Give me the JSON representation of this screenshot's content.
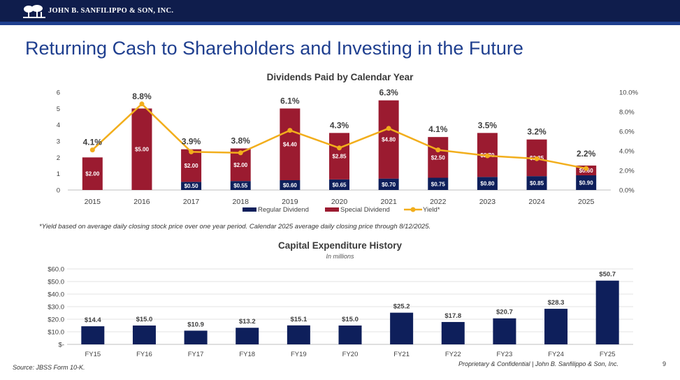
{
  "header": {
    "company_name": "JOHN B. SANFILIPPO & SON, INC."
  },
  "page_title": "Returning Cash to Shareholders and Investing in the Future",
  "footnote": "*Yield based on average daily closing stock price over one year period. Calendar 2025 average daily closing price through 8/12/2025.",
  "footer": {
    "source": "Source: JBSS Form 10-K.",
    "confidential": "Proprietary & Confidential | John B. Sanfilippo & Son, Inc.",
    "page_number": "9"
  },
  "colors": {
    "navy": "#0f1d4c",
    "regular": "#0e1f5b",
    "special": "#9b1b30",
    "yield": "#f2ae1c"
  },
  "chart_data": [
    {
      "type": "bar",
      "stacked": true,
      "title": "Dividends Paid by Calendar Year",
      "categories": [
        "2015",
        "2016",
        "2017",
        "2018",
        "2019",
        "2020",
        "2021",
        "2022",
        "2023",
        "2024",
        "2025"
      ],
      "series": [
        {
          "name": "Regular Dividend",
          "values": [
            0,
            0,
            0.5,
            0.55,
            0.6,
            0.65,
            0.7,
            0.75,
            0.8,
            0.85,
            0.9
          ],
          "labels": [
            "",
            "",
            "$0.50",
            "$0.55",
            "$0.60",
            "$0.65",
            "$0.70",
            "$0.75",
            "$0.80",
            "$0.85",
            "$0.90"
          ]
        },
        {
          "name": "Special Dividend",
          "values": [
            2.0,
            5.0,
            2.0,
            2.0,
            4.4,
            2.85,
            4.8,
            2.5,
            2.7,
            2.25,
            0.6
          ],
          "labels": [
            "$2.00",
            "$5.00",
            "$2.00",
            "$2.00",
            "$4.40",
            "$2.85",
            "$4.80",
            "$2.50",
            "$2.70",
            "$2.25",
            "$0.60"
          ]
        }
      ],
      "yield_series": {
        "name": "Yield*",
        "values": [
          4.1,
          8.8,
          3.9,
          3.8,
          6.1,
          4.3,
          6.3,
          4.1,
          3.5,
          3.2,
          2.2
        ],
        "labels": [
          "4.1%",
          "8.8%",
          "3.9%",
          "3.8%",
          "6.1%",
          "4.3%",
          "6.3%",
          "4.1%",
          "3.5%",
          "3.2%",
          "2.2%"
        ]
      },
      "ylim": [
        0,
        6
      ],
      "yticks": [
        "0",
        "1",
        "2",
        "3",
        "4",
        "5",
        "6"
      ],
      "y2lim": [
        0,
        10
      ],
      "y2ticks": [
        "0.0%",
        "2.0%",
        "4.0%",
        "6.0%",
        "8.0%",
        "10.0%"
      ],
      "legend": [
        "Regular Dividend",
        "Special Dividend",
        "Yield*"
      ]
    },
    {
      "type": "bar",
      "title": "Capital Expenditure History",
      "subtitle": "In millions",
      "categories": [
        "FY15",
        "FY16",
        "FY17",
        "FY18",
        "FY19",
        "FY20",
        "FY21",
        "FY22",
        "FY23",
        "FY24",
        "FY25"
      ],
      "values": [
        14.4,
        15.0,
        10.9,
        13.2,
        15.1,
        15.0,
        25.2,
        17.8,
        20.7,
        28.3,
        50.7
      ],
      "labels": [
        "$14.4",
        "$15.0",
        "$10.9",
        "$13.2",
        "$15.1",
        "$15.0",
        "$25.2",
        "$17.8",
        "$20.7",
        "$28.3",
        "$50.7"
      ],
      "ylim": [
        0,
        60
      ],
      "yticks": [
        "$-",
        "$10.0",
        "$20.0",
        "$30.0",
        "$40.0",
        "$50.0",
        "$60.0"
      ]
    }
  ]
}
